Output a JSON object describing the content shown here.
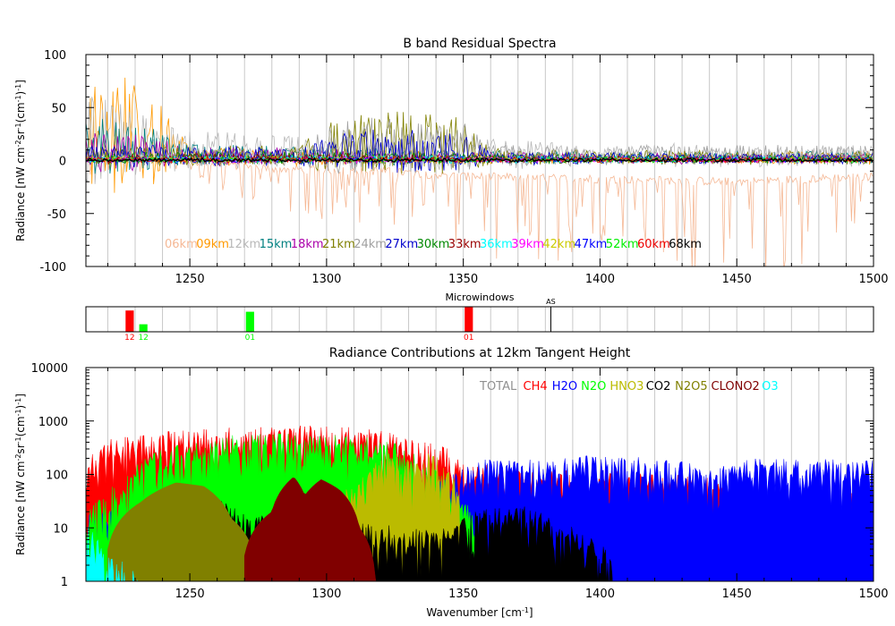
{
  "chart_data": [
    {
      "type": "line",
      "title": "B band Residual Spectra",
      "ylabel_parts": [
        "Radiance  [nW cm",
        "-2",
        "sr",
        "-1",
        "(cm",
        "-1",
        ")",
        "-1",
        "]"
      ],
      "xlim": [
        1212,
        1500
      ],
      "ylim": [
        -100,
        100
      ],
      "xticks": [
        1250,
        1300,
        1350,
        1400,
        1450,
        1500
      ],
      "yticks": [
        -100,
        -50,
        0,
        50,
        100
      ],
      "grid": "vertical",
      "legend_position": "bottom",
      "series": [
        {
          "name": "06km",
          "color": "#f5b895",
          "values": [
            [
              1212,
              5
            ],
            [
              1240,
              2
            ],
            [
              1280,
              -15
            ],
            [
              1320,
              -20
            ],
            [
              1350,
              -30
            ],
            [
              1400,
              -35
            ],
            [
              1450,
              -40
            ],
            [
              1500,
              -30
            ]
          ]
        },
        {
          "name": "09km",
          "color": "#ff9900",
          "values": [
            [
              1212,
              95
            ],
            [
              1225,
              88
            ],
            [
              1238,
              60
            ],
            [
              1250,
              12
            ],
            [
              1300,
              10
            ],
            [
              1400,
              5
            ],
            [
              1500,
              8
            ]
          ]
        },
        {
          "name": "12km",
          "color": "#b8b8b8",
          "values": [
            [
              1212,
              65
            ],
            [
              1230,
              50
            ],
            [
              1245,
              30
            ],
            [
              1300,
              22
            ],
            [
              1340,
              25
            ],
            [
              1400,
              15
            ],
            [
              1500,
              15
            ]
          ]
        },
        {
          "name": "15km",
          "color": "#008080",
          "values": [
            [
              1212,
              42
            ],
            [
              1230,
              38
            ],
            [
              1245,
              18
            ],
            [
              1300,
              12
            ],
            [
              1400,
              8
            ],
            [
              1500,
              8
            ]
          ]
        },
        {
          "name": "18km",
          "color": "#aa00aa",
          "values": [
            [
              1212,
              28
            ],
            [
              1230,
              25
            ],
            [
              1250,
              14
            ],
            [
              1300,
              10
            ],
            [
              1400,
              6
            ],
            [
              1500,
              6
            ]
          ]
        },
        {
          "name": "21km",
          "color": "#808000",
          "values": [
            [
              1212,
              12
            ],
            [
              1290,
              14
            ],
            [
              1305,
              45
            ],
            [
              1330,
              48
            ],
            [
              1350,
              40
            ],
            [
              1360,
              10
            ],
            [
              1500,
              8
            ]
          ]
        },
        {
          "name": "24km",
          "color": "#a0a0a0",
          "values": [
            [
              1212,
              10
            ],
            [
              1290,
              12
            ],
            [
              1305,
              40
            ],
            [
              1330,
              42
            ],
            [
              1350,
              35
            ],
            [
              1360,
              14
            ],
            [
              1500,
              14
            ]
          ]
        },
        {
          "name": "27km",
          "color": "#0000cc",
          "values": [
            [
              1212,
              15
            ],
            [
              1290,
              12
            ],
            [
              1305,
              30
            ],
            [
              1330,
              32
            ],
            [
              1350,
              25
            ],
            [
              1360,
              8
            ],
            [
              1500,
              6
            ]
          ]
        },
        {
          "name": "30km",
          "color": "#008800",
          "values": [
            [
              1212,
              6
            ],
            [
              1300,
              8
            ],
            [
              1400,
              4
            ],
            [
              1500,
              4
            ]
          ]
        },
        {
          "name": "33km",
          "color": "#990000",
          "values": [
            [
              1212,
              5
            ],
            [
              1300,
              6
            ],
            [
              1400,
              3
            ],
            [
              1500,
              3
            ]
          ]
        },
        {
          "name": "36km",
          "color": "#00ffff",
          "values": [
            [
              1212,
              3
            ],
            [
              1300,
              4
            ],
            [
              1400,
              3
            ],
            [
              1500,
              3
            ]
          ]
        },
        {
          "name": "39km",
          "color": "#ff00ff",
          "values": [
            [
              1212,
              3
            ],
            [
              1300,
              3
            ],
            [
              1400,
              2
            ],
            [
              1500,
              2
            ]
          ]
        },
        {
          "name": "42km",
          "color": "#cccc00",
          "values": [
            [
              1212,
              3
            ],
            [
              1300,
              3
            ],
            [
              1400,
              2
            ],
            [
              1500,
              2
            ]
          ]
        },
        {
          "name": "47km",
          "color": "#0000ff",
          "values": [
            [
              1212,
              2
            ],
            [
              1300,
              3
            ],
            [
              1400,
              2
            ],
            [
              1500,
              2
            ]
          ]
        },
        {
          "name": "52km",
          "color": "#00ee00",
          "values": [
            [
              1212,
              2
            ],
            [
              1300,
              2
            ],
            [
              1400,
              2
            ],
            [
              1500,
              2
            ]
          ]
        },
        {
          "name": "60km",
          "color": "#ee0000",
          "values": [
            [
              1212,
              2
            ],
            [
              1300,
              2
            ],
            [
              1400,
              2
            ],
            [
              1500,
              2
            ]
          ]
        },
        {
          "name": "68km",
          "color": "#000000",
          "values": [
            [
              1212,
              1
            ],
            [
              1300,
              1
            ],
            [
              1400,
              1
            ],
            [
              1500,
              1
            ]
          ]
        }
      ]
    },
    {
      "type": "bar",
      "title": "Microwindows",
      "xlim": [
        1212,
        1500
      ],
      "marker": {
        "label": "AS",
        "x": 1382
      },
      "windows": [
        {
          "label": "12",
          "x0": 1226.5,
          "x1": 1229.5,
          "height": 0.85,
          "color": "#ff0000"
        },
        {
          "label": "12",
          "x0": 1231.5,
          "x1": 1234.5,
          "height": 0.3,
          "color": "#00ff00"
        },
        {
          "label": "01",
          "x0": 1270.5,
          "x1": 1273.5,
          "height": 0.8,
          "color": "#00ff00"
        },
        {
          "label": "01",
          "x0": 1350.5,
          "x1": 1353.5,
          "height": 1.0,
          "color": "#ff0000"
        }
      ]
    },
    {
      "type": "area",
      "title": "Radiance Contributions at 12km Tangent Height",
      "xlabel_parts": [
        "Wavenumber  [cm",
        "-1",
        "]"
      ],
      "ylabel_parts": [
        "Radiance  [nW cm",
        "-2",
        "sr",
        "-1",
        "(cm",
        "-1",
        ")",
        "-1",
        "]"
      ],
      "xlim": [
        1212,
        1500
      ],
      "ylim": [
        1,
        10000
      ],
      "yscale": "log",
      "xticks": [
        1250,
        1300,
        1350,
        1400,
        1450,
        1500
      ],
      "yticks": [
        1,
        10,
        100,
        1000,
        10000
      ],
      "grid": "vertical",
      "legend_position": "top-right",
      "series": [
        {
          "name": "TOTAL",
          "color": "#909090",
          "values": [
            [
              1212,
              400
            ],
            [
              1300,
              500
            ],
            [
              1400,
              300
            ],
            [
              1500,
              150
            ]
          ]
        },
        {
          "name": "CH4",
          "color": "#ff0000",
          "values": [
            [
              1212,
              60
            ],
            [
              1215,
              250
            ],
            [
              1230,
              380
            ],
            [
              1260,
              500
            ],
            [
              1290,
              560
            ],
            [
              1310,
              520
            ],
            [
              1330,
              350
            ],
            [
              1345,
              200
            ],
            [
              1350,
              120
            ],
            [
              1370,
              80
            ],
            [
              1400,
              80
            ],
            [
              1440,
              60
            ],
            [
              1460,
              35
            ],
            [
              1500,
              30
            ]
          ]
        },
        {
          "name": "H2O",
          "color": "#0000ff",
          "values": [
            [
              1212,
              15
            ],
            [
              1330,
              20
            ],
            [
              1345,
              60
            ],
            [
              1360,
              140
            ],
            [
              1380,
              120
            ],
            [
              1395,
              150
            ],
            [
              1420,
              140
            ],
            [
              1440,
              90
            ],
            [
              1460,
              140
            ],
            [
              1480,
              130
            ],
            [
              1500,
              120
            ]
          ]
        },
        {
          "name": "N2O",
          "color": "#00ff00",
          "values": [
            [
              1212,
              10
            ],
            [
              1225,
              50
            ],
            [
              1240,
              200
            ],
            [
              1260,
              350
            ],
            [
              1280,
              390
            ],
            [
              1300,
              370
            ],
            [
              1320,
              340
            ],
            [
              1335,
              120
            ],
            [
              1345,
              40
            ],
            [
              1355,
              10
            ]
          ]
        },
        {
          "name": "HNO3",
          "color": "#bbbb00",
          "values": [
            [
              1300,
              3
            ],
            [
              1315,
              70
            ],
            [
              1322,
              200
            ],
            [
              1328,
              160
            ],
            [
              1332,
              120
            ],
            [
              1338,
              170
            ],
            [
              1345,
              90
            ],
            [
              1350,
              10
            ]
          ]
        },
        {
          "name": "CO2",
          "color": "#000000",
          "values": [
            [
              1250,
              5
            ],
            [
              1260,
              25
            ],
            [
              1270,
              12
            ],
            [
              1340,
              6
            ],
            [
              1355,
              14
            ],
            [
              1370,
              18
            ],
            [
              1385,
              10
            ],
            [
              1395,
              5
            ],
            [
              1405,
              2
            ]
          ]
        },
        {
          "name": "N2O5",
          "color": "#808000",
          "values": [
            [
              1220,
              4
            ],
            [
              1232,
              30
            ],
            [
              1245,
              70
            ],
            [
              1255,
              60
            ],
            [
              1265,
              15
            ],
            [
              1275,
              1
            ]
          ]
        },
        {
          "name": "CLONO2",
          "color": "#800000",
          "values": [
            [
              1270,
              3
            ],
            [
              1280,
              20
            ],
            [
              1288,
              90
            ],
            [
              1292,
              40
            ],
            [
              1298,
              80
            ],
            [
              1305,
              50
            ],
            [
              1312,
              10
            ],
            [
              1318,
              1
            ]
          ]
        },
        {
          "name": "O3",
          "color": "#00ffff",
          "values": [
            [
              1212,
              8
            ],
            [
              1220,
              2
            ],
            [
              1232,
              1
            ]
          ]
        }
      ]
    }
  ]
}
